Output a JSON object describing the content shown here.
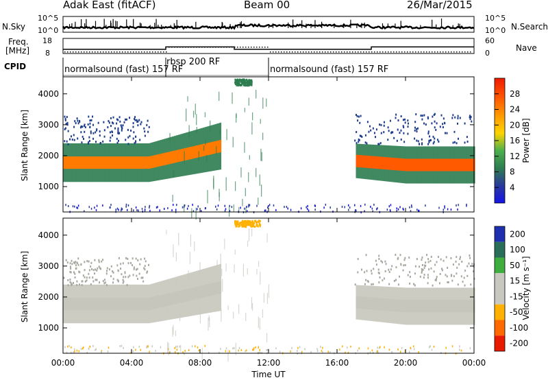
{
  "header": {
    "title": "Adak East (fitACF)",
    "beam": "Beam 00",
    "date": "26/Mar/2015"
  },
  "top_panels": {
    "nsky_label": "N.Sky",
    "nsky_ticks": [
      "10^5",
      "10^0"
    ],
    "nsearch_label": "N.Search",
    "nsearch_ticks": [
      "10^5",
      "10^0"
    ],
    "freq_label_line1": "Freq.",
    "freq_label_line2": "[MHz]",
    "freq_ticks": [
      "18",
      "8"
    ],
    "nave_label": "Nave",
    "nave_ticks": [
      "60",
      "0"
    ],
    "cpid_label": "CPID",
    "cpid_segments": [
      {
        "text": "normalsound (fast) 157 RF",
        "start_h": 0,
        "end_h": 6
      },
      {
        "text": "rbsp 200 RF",
        "start_h": 6,
        "end_h": 12
      },
      {
        "text": "normalsound (fast) 157 RF",
        "start_h": 12,
        "end_h": 24
      }
    ],
    "freq_steps": [
      {
        "start_h": 0,
        "end_h": 6,
        "value": 10.8
      },
      {
        "start_h": 6,
        "end_h": 10,
        "value": 12.4
      },
      {
        "start_h": 10,
        "end_h": 18,
        "value": 10.8
      },
      {
        "start_h": 18,
        "end_h": 24,
        "value": 12.4
      }
    ]
  },
  "chart_data": [
    {
      "type": "heatmap",
      "ylabel": "Slant Range [km]",
      "xlabel": "Time UT",
      "x_ticks": [
        "00:00",
        "04:00",
        "08:00",
        "12:00",
        "16:00",
        "20:00",
        "00:00"
      ],
      "xlim_hours": [
        0,
        24
      ],
      "y_ticks": [
        1000,
        2000,
        3000,
        4000
      ],
      "ylim": [
        180,
        4550
      ],
      "colorbar_label": "Power [dB]",
      "colorbar_ticks": [
        "4",
        "8",
        "12",
        "16",
        "20",
        "24",
        "28"
      ],
      "colorbar_colors": [
        "#1414e6",
        "#2a3a9c",
        "#2e7d50",
        "#4db04d",
        "#ffd400",
        "#ff9a00",
        "#ff5a00",
        "#ee1a00"
      ],
      "bands": [
        {
          "from_h": 0,
          "to_h": 9.2,
          "r0": 1150,
          "r1": 2400,
          "core": "#ff7a00",
          "edge": "#2e7d50"
        },
        {
          "from_h": 17.1,
          "to_h": 24,
          "r0": 1100,
          "r1": 2300,
          "core": "#ff5a00",
          "edge": "#2e7d50"
        }
      ],
      "scatter_regions": [
        {
          "from_h": 0,
          "to_h": 5,
          "r0": 2400,
          "r1": 3300,
          "color": "#1e3c8c"
        },
        {
          "from_h": 17,
          "to_h": 24,
          "r0": 2400,
          "r1": 3400,
          "color": "#1e3c8c"
        },
        {
          "from_h": 10,
          "to_h": 11,
          "r0": 4300,
          "r1": 4500,
          "color": "#2e7d50"
        }
      ]
    },
    {
      "type": "heatmap",
      "ylabel": "Slant Range [km]",
      "xlabel": "Time UT",
      "x_ticks": [
        "00:00",
        "04:00",
        "08:00",
        "12:00",
        "16:00",
        "20:00",
        "00:00"
      ],
      "xlim_hours": [
        0,
        24
      ],
      "y_ticks": [
        1000,
        2000,
        3000,
        4000
      ],
      "ylim": [
        180,
        4550
      ],
      "colorbar_label": "Velocity [m s⁻¹]",
      "colorbar_ticks": [
        "200",
        "100",
        "50",
        "15",
        "-15",
        "-50",
        "-100",
        "-200"
      ],
      "colorbar_colors": [
        "#1e2fb0",
        "#2a6e5a",
        "#3fae3f",
        "#c8c8c0",
        "#c8c8c0",
        "#ffb000",
        "#ff6a00",
        "#e81a00"
      ],
      "bands": [
        {
          "from_h": 0,
          "to_h": 9.2,
          "r0": 1150,
          "r1": 2400,
          "core": "#c6c6bc",
          "edge": "#c6c6bc"
        },
        {
          "from_h": 17.1,
          "to_h": 24,
          "r0": 1100,
          "r1": 2300,
          "core": "#c6c6bc",
          "edge": "#c6c6bc"
        }
      ],
      "scatter_regions": [
        {
          "from_h": 0,
          "to_h": 5,
          "r0": 2400,
          "r1": 3300,
          "color": "#a8a8a0"
        },
        {
          "from_h": 17,
          "to_h": 24,
          "r0": 2400,
          "r1": 3400,
          "color": "#a8a8a0"
        },
        {
          "from_h": 10,
          "to_h": 11.5,
          "r0": 4300,
          "r1": 4500,
          "color": "#ffb000"
        }
      ]
    }
  ]
}
